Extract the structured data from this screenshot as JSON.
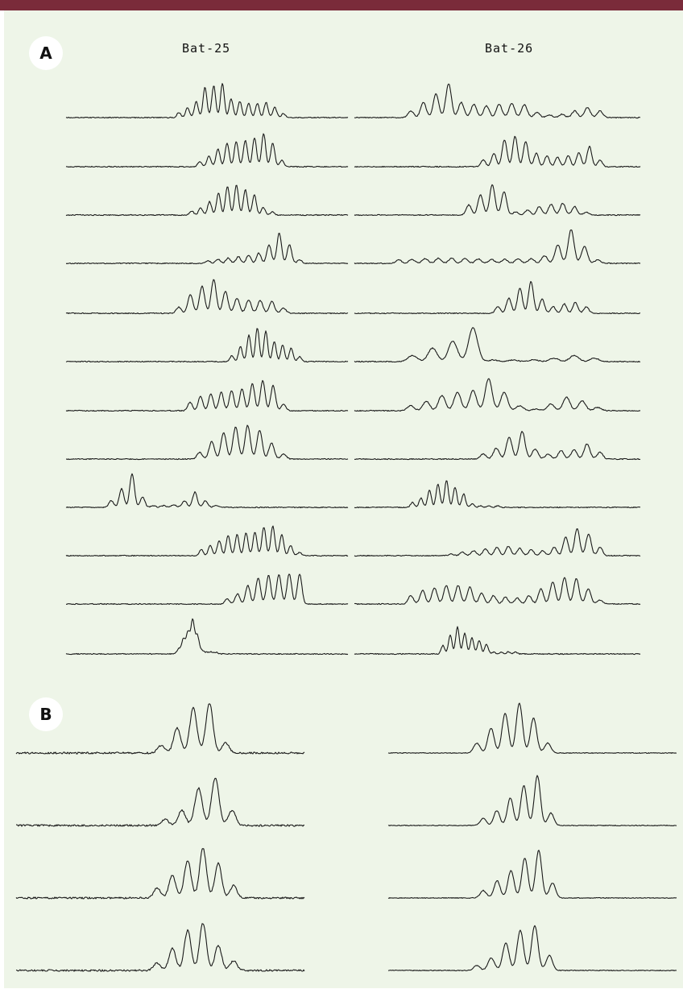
{
  "figure": {
    "panel_a": {
      "label": "A",
      "columns": [
        {
          "title": "Bat-25",
          "traces": [
            [
              0.15,
              0.3,
              0.48,
              0.9,
              0.95,
              1.0,
              0.55,
              0.48,
              0.42,
              0.42,
              0.45,
              0.3,
              0.12
            ],
            [
              0.15,
              0.32,
              0.52,
              0.7,
              0.75,
              0.78,
              0.85,
              0.98,
              0.7,
              0.2
            ],
            [
              0.12,
              0.22,
              0.4,
              0.65,
              0.85,
              0.9,
              0.75,
              0.6,
              0.22,
              0.1
            ],
            [
              0.08,
              0.12,
              0.16,
              0.2,
              0.24,
              0.3,
              0.55,
              0.9,
              0.55,
              0.1
            ],
            [
              0.18,
              0.55,
              0.8,
              1.0,
              0.65,
              0.45,
              0.4,
              0.38,
              0.35,
              0.15
            ],
            [
              0.18,
              0.45,
              0.78,
              1.0,
              0.9,
              0.6,
              0.5,
              0.4,
              0.15
            ],
            [
              0.25,
              0.42,
              0.5,
              0.55,
              0.6,
              0.65,
              0.8,
              0.9,
              0.75,
              0.2
            ],
            [
              0.2,
              0.52,
              0.78,
              0.95,
              1.0,
              0.85,
              0.48,
              0.15
            ],
            [
              0.2,
              0.55,
              1.0,
              0.3,
              0.05,
              0.05,
              0.08,
              0.2,
              0.45,
              0.2,
              0.05
            ],
            [
              0.18,
              0.3,
              0.45,
              0.6,
              0.62,
              0.68,
              0.7,
              0.85,
              0.88,
              0.62,
              0.3,
              0.1
            ],
            [
              0.15,
              0.3,
              0.55,
              0.78,
              0.85,
              0.88,
              0.9,
              0.88
            ],
            [
              0.15,
              0.45,
              0.65,
              1.0,
              0.55,
              0.1,
              0.05,
              0.06,
              0.05
            ]
          ]
        },
        {
          "title": "Bat-26",
          "traces": [
            [
              0.2,
              0.45,
              0.7,
              1.0,
              0.45,
              0.4,
              0.35,
              0.4,
              0.42,
              0.38,
              0.15,
              0.08,
              0.1,
              0.2,
              0.3,
              0.2
            ],
            [
              0.2,
              0.4,
              0.8,
              0.9,
              0.75,
              0.4,
              0.32,
              0.28,
              0.32,
              0.42,
              0.6,
              0.2
            ],
            [
              0.3,
              0.6,
              0.9,
              0.7,
              0.1,
              0.15,
              0.25,
              0.32,
              0.35,
              0.25,
              0.08
            ],
            [
              0.1,
              0.12,
              0.14,
              0.15,
              0.15,
              0.14,
              0.13,
              0.12,
              0.12,
              0.13,
              0.14,
              0.22,
              0.55,
              1.0,
              0.5,
              0.1
            ],
            [
              0.2,
              0.45,
              0.75,
              0.95,
              0.42,
              0.2,
              0.28,
              0.32,
              0.2
            ],
            [
              0.18,
              0.4,
              0.6,
              1.0,
              0.05,
              0.05,
              0.05,
              0.1,
              0.18,
              0.1
            ],
            [
              0.15,
              0.28,
              0.45,
              0.55,
              0.6,
              0.95,
              0.55,
              0.15,
              0.05,
              0.2,
              0.4,
              0.3,
              0.1
            ],
            [
              0.15,
              0.32,
              0.65,
              0.82,
              0.3,
              0.15,
              0.25,
              0.28,
              0.45,
              0.2
            ],
            [
              0.15,
              0.28,
              0.5,
              0.7,
              0.8,
              0.6,
              0.4,
              0.1,
              0.05,
              0.05,
              0.05
            ],
            [
              0.05,
              0.1,
              0.15,
              0.2,
              0.25,
              0.28,
              0.22,
              0.18,
              0.15,
              0.25,
              0.55,
              0.8,
              0.65,
              0.25
            ],
            [
              0.25,
              0.4,
              0.48,
              0.55,
              0.55,
              0.5,
              0.32,
              0.25,
              0.2,
              0.18,
              0.25,
              0.45,
              0.65,
              0.78,
              0.75,
              0.45,
              0.12
            ],
            [
              0.25,
              0.55,
              0.8,
              0.62,
              0.48,
              0.4,
              0.28,
              0.05,
              0.05,
              0.06,
              0.05
            ]
          ]
        }
      ]
    },
    "panel_b": {
      "label": "B",
      "columns": [
        {
          "traces": [
            [
              0.15,
              0.5,
              0.9,
              1.0,
              0.2
            ],
            [
              0.12,
              0.3,
              0.75,
              0.95,
              0.3
            ],
            [
              0.2,
              0.45,
              0.75,
              1.0,
              0.7,
              0.25
            ],
            [
              0.15,
              0.45,
              0.8,
              0.95,
              0.5,
              0.2
            ]
          ]
        },
        {
          "traces": [
            [
              0.2,
              0.5,
              0.8,
              1.0,
              0.7,
              0.2
            ],
            [
              0.15,
              0.3,
              0.55,
              0.8,
              1.0,
              0.25
            ],
            [
              0.15,
              0.35,
              0.55,
              0.8,
              0.95,
              0.3
            ],
            [
              0.1,
              0.25,
              0.55,
              0.8,
              0.9,
              0.3
            ]
          ]
        }
      ]
    },
    "colors": {
      "background": "#eef5e8",
      "top_rule": "#7a2b3a",
      "trace": "#1a1a1a"
    }
  }
}
